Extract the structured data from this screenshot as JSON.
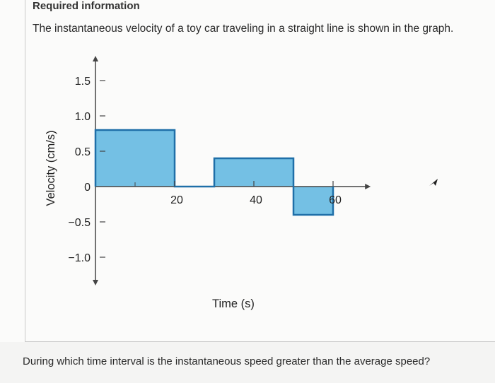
{
  "header": {
    "title": "Required information",
    "intro": "The instantaneous velocity of a toy car traveling in a straight line is shown in the graph."
  },
  "question": {
    "text": "During which time interval is the instantaneous speed  greater than the average speed?"
  },
  "colors": {
    "fill": "#74c0e4",
    "stroke": "#1f6fa8",
    "axis": "#444444",
    "background": "#fbfbfa"
  },
  "icons": [
    "mouse-pointer-icon"
  ],
  "chart_data": {
    "type": "area",
    "title": "",
    "xlabel": "Time (s)",
    "ylabel": "Velocity (cm/s)",
    "xlim": [
      -10,
      70
    ],
    "ylim": [
      -1.25,
      1.75
    ],
    "x_ticks": [
      20,
      40,
      60
    ],
    "x_tick_labels": [
      "20",
      "40",
      "60"
    ],
    "y_ticks": [
      1.5,
      1.0,
      0.5,
      0,
      -0.5,
      -1.0
    ],
    "y_tick_labels": [
      "1.5",
      "1.0",
      "0.5",
      "0",
      "−0.5",
      "−1.0"
    ],
    "grid": false,
    "segments": [
      {
        "t_start": 0,
        "t_end": 20,
        "velocity": 0.8
      },
      {
        "t_start": 20,
        "t_end": 30,
        "velocity": 0
      },
      {
        "t_start": 30,
        "t_end": 50,
        "velocity": 0.4
      },
      {
        "t_start": 50,
        "t_end": 60,
        "velocity": -0.4
      }
    ]
  }
}
